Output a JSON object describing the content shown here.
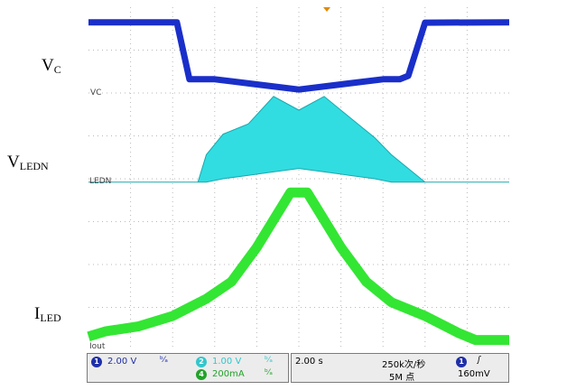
{
  "labels": {
    "vc": {
      "main": "V",
      "sub": "C"
    },
    "vledn": {
      "main": "V",
      "sub": "LEDN"
    },
    "iled": {
      "main": "I",
      "sub": "LED"
    }
  },
  "trace_tags": {
    "vc": "VC",
    "ledn": "LEDN",
    "iout": "Iout"
  },
  "status": {
    "ch1": {
      "num": "1",
      "scale": "2.00 V",
      "color": "#1f2fa8"
    },
    "ch2": {
      "num": "2",
      "scale": "1.00 V",
      "color": "#33c6cc"
    },
    "ch4": {
      "num": "4",
      "scale": "200mA",
      "color": "#22a32a"
    },
    "timebase": "2.00 s",
    "sample_rate": "250k次/秒",
    "record_length": "5M 点",
    "trigger": {
      "source": "1",
      "slope_icon": "rising-edge-icon",
      "level": "160mV"
    }
  },
  "colors": {
    "vc_trace": "#1a2fc9",
    "vledn_trace": "#31dde0",
    "iled_trace": "#33e633",
    "grid": "#b8b8b8",
    "trigger_marker": "#e08a00"
  },
  "chart_data": {
    "type": "line",
    "grid": true,
    "x_divisions": 10,
    "y_divisions": 8,
    "series": [
      {
        "name": "V_C",
        "x": [
          0,
          0.21,
          0.24,
          0.3,
          0.4,
          0.5,
          0.6,
          0.7,
          0.74,
          0.76,
          0.8,
          1.0
        ],
        "y": [
          0.956,
          0.956,
          0.79,
          0.79,
          0.775,
          0.76,
          0.775,
          0.79,
          0.79,
          0.8,
          0.955,
          0.956
        ]
      },
      {
        "name": "V_LEDN",
        "x": [
          0,
          0.26,
          0.28,
          0.32,
          0.38,
          0.44,
          0.5,
          0.56,
          0.62,
          0.68,
          0.72,
          0.8,
          1.0
        ],
        "envelope_top": [
          0.49,
          0.49,
          0.57,
          0.63,
          0.66,
          0.74,
          0.7,
          0.74,
          0.68,
          0.62,
          0.57,
          0.49,
          0.49
        ],
        "envelope_bottom": [
          0.49,
          0.49,
          0.49,
          0.5,
          0.51,
          0.52,
          0.53,
          0.52,
          0.51,
          0.5,
          0.49,
          0.49,
          0.49
        ]
      },
      {
        "name": "I_LED",
        "x": [
          0,
          0.04,
          0.12,
          0.2,
          0.28,
          0.34,
          0.4,
          0.44,
          0.48,
          0.52,
          0.56,
          0.6,
          0.66,
          0.72,
          0.8,
          0.88,
          0.92,
          1.0
        ],
        "y": [
          0.04,
          0.055,
          0.07,
          0.1,
          0.15,
          0.2,
          0.3,
          0.38,
          0.46,
          0.46,
          0.38,
          0.3,
          0.2,
          0.14,
          0.1,
          0.05,
          0.03,
          0.03
        ]
      }
    ]
  }
}
